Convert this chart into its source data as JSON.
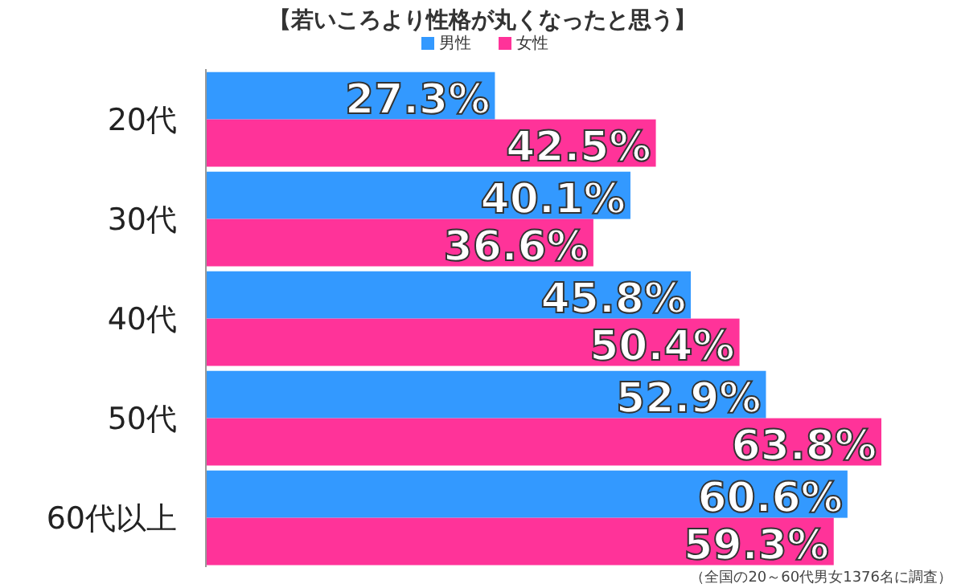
{
  "chart_data": {
    "type": "bar",
    "orientation": "horizontal",
    "title": "【若いころより性格が丸くなったと思う】",
    "categories": [
      "20代",
      "30代",
      "40代",
      "50代",
      "60代以上"
    ],
    "series": [
      {
        "name": "男性",
        "color": "#3399ff",
        "values": [
          27.3,
          40.1,
          45.8,
          52.9,
          60.6
        ],
        "value_labels": [
          "27.3%",
          "40.1%",
          "45.8%",
          "52.9%",
          "60.6%"
        ]
      },
      {
        "name": "女性",
        "color": "#ff3399",
        "values": [
          42.5,
          36.6,
          50.4,
          63.8,
          59.3
        ],
        "value_labels": [
          "42.5%",
          "36.6%",
          "50.4%",
          "63.8%",
          "59.3%"
        ]
      }
    ],
    "legend": "top",
    "annotations": [
      "（全国の20～60代男女1376名に調査）"
    ]
  }
}
